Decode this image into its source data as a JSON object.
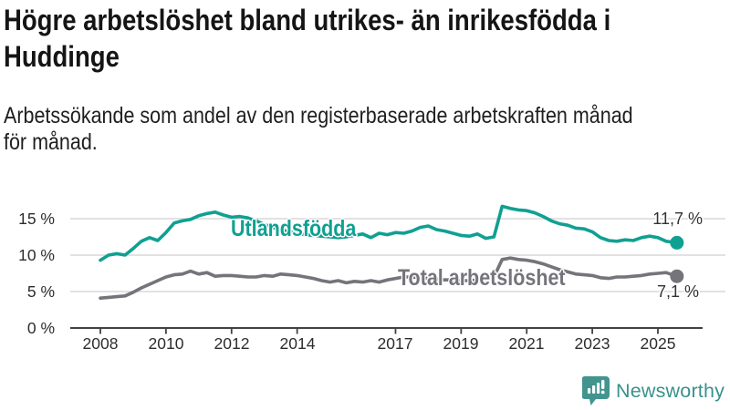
{
  "header": {
    "title_lines": [
      "Högre arbetslöshet bland utrikes- än inrikesfödda i",
      "Huddinge"
    ],
    "subtitle_lines": [
      "Arbetssökande som andel av den registerbaserade arbetskraften månad",
      "för månad."
    ]
  },
  "chart_data": {
    "type": "line",
    "unit": "%",
    "grid": "horizontal",
    "legend": "inline-labels",
    "ylim": [
      0,
      17.5
    ],
    "xlim": [
      2007.1,
      2026.4
    ],
    "x": [
      2008,
      2008.25,
      2008.5,
      2008.75,
      2009,
      2009.25,
      2009.5,
      2009.75,
      2010,
      2010.25,
      2010.5,
      2010.75,
      2011,
      2011.25,
      2011.5,
      2011.75,
      2012,
      2012.25,
      2012.5,
      2012.75,
      2013,
      2013.25,
      2013.5,
      2013.75,
      2014,
      2014.25,
      2014.5,
      2014.75,
      2015,
      2015.25,
      2015.5,
      2015.75,
      2016,
      2016.25,
      2016.5,
      2016.75,
      2017,
      2017.25,
      2017.5,
      2017.75,
      2018,
      2018.25,
      2018.5,
      2018.75,
      2019,
      2019.25,
      2019.5,
      2019.75,
      2020,
      2020.25,
      2020.5,
      2020.75,
      2021,
      2021.25,
      2021.5,
      2021.75,
      2022,
      2022.25,
      2022.5,
      2022.75,
      2023,
      2023.25,
      2023.5,
      2023.75,
      2024,
      2024.25,
      2024.5,
      2024.75,
      2025,
      2025.25,
      2025.58
    ],
    "series": [
      {
        "name": "Utlandsfödda",
        "color": "#10A092",
        "end_label": "11,7 %",
        "end_value": 11.7,
        "values": [
          9.3,
          10.0,
          10.2,
          10.0,
          10.9,
          11.9,
          12.4,
          12.0,
          13.1,
          14.4,
          14.7,
          14.9,
          15.4,
          15.7,
          15.9,
          15.5,
          15.2,
          15.3,
          15.1,
          14.7,
          14.2,
          13.8,
          13.5,
          13.2,
          13.0,
          12.8,
          12.7,
          12.6,
          12.5,
          12.4,
          12.5,
          12.7,
          12.9,
          12.4,
          13.0,
          12.8,
          13.1,
          13.0,
          13.3,
          13.8,
          14.0,
          13.5,
          13.3,
          13.0,
          12.7,
          12.6,
          12.9,
          12.3,
          12.5,
          16.7,
          16.4,
          16.2,
          16.1,
          15.8,
          15.3,
          14.7,
          14.3,
          14.1,
          13.7,
          13.6,
          13.2,
          12.4,
          12.0,
          11.9,
          12.1,
          12.0,
          12.4,
          12.6,
          12.4,
          11.9,
          11.7
        ]
      },
      {
        "name": "Total arbetslöshet",
        "color": "#74747A",
        "end_label": "7,1 %",
        "end_value": 7.1,
        "values": [
          4.1,
          4.2,
          4.3,
          4.4,
          4.9,
          5.5,
          6.0,
          6.5,
          7.0,
          7.3,
          7.4,
          7.8,
          7.4,
          7.6,
          7.1,
          7.2,
          7.2,
          7.1,
          7.0,
          7.0,
          7.2,
          7.1,
          7.4,
          7.3,
          7.2,
          7.0,
          6.8,
          6.5,
          6.3,
          6.5,
          6.2,
          6.4,
          6.3,
          6.5,
          6.3,
          6.6,
          6.8,
          7.0,
          7.0,
          6.9,
          6.8,
          6.7,
          6.6,
          6.6,
          6.5,
          6.5,
          6.6,
          6.7,
          7.0,
          9.4,
          9.6,
          9.4,
          9.3,
          9.1,
          8.8,
          8.4,
          8.0,
          7.7,
          7.4,
          7.3,
          7.2,
          6.9,
          6.8,
          7.0,
          7.0,
          7.1,
          7.2,
          7.4,
          7.5,
          7.6,
          7.1
        ]
      }
    ],
    "yticks": [
      {
        "value": 0,
        "label": "0 %"
      },
      {
        "value": 5,
        "label": "5 %"
      },
      {
        "value": 10,
        "label": "10 %"
      },
      {
        "value": 15,
        "label": "15 %"
      }
    ],
    "xticks": [
      {
        "value": 2008,
        "label": "2008"
      },
      {
        "value": 2010,
        "label": "2010"
      },
      {
        "value": 2012,
        "label": "2012"
      },
      {
        "value": 2014,
        "label": "2014"
      },
      {
        "value": 2017,
        "label": "2017"
      },
      {
        "value": 2019,
        "label": "2019"
      },
      {
        "value": 2021,
        "label": "2021"
      },
      {
        "value": 2023,
        "label": "2023"
      },
      {
        "value": 2025,
        "label": "2025"
      }
    ],
    "colors": {
      "grid": "#d8d8d8",
      "axis": "#424242",
      "end_label_text": "#333333"
    }
  },
  "branding": {
    "logo_text": "Newsworthy",
    "logo_color": "#39918C",
    "logo_icon": "newsworthy-bar-chart-bubble-icon"
  }
}
